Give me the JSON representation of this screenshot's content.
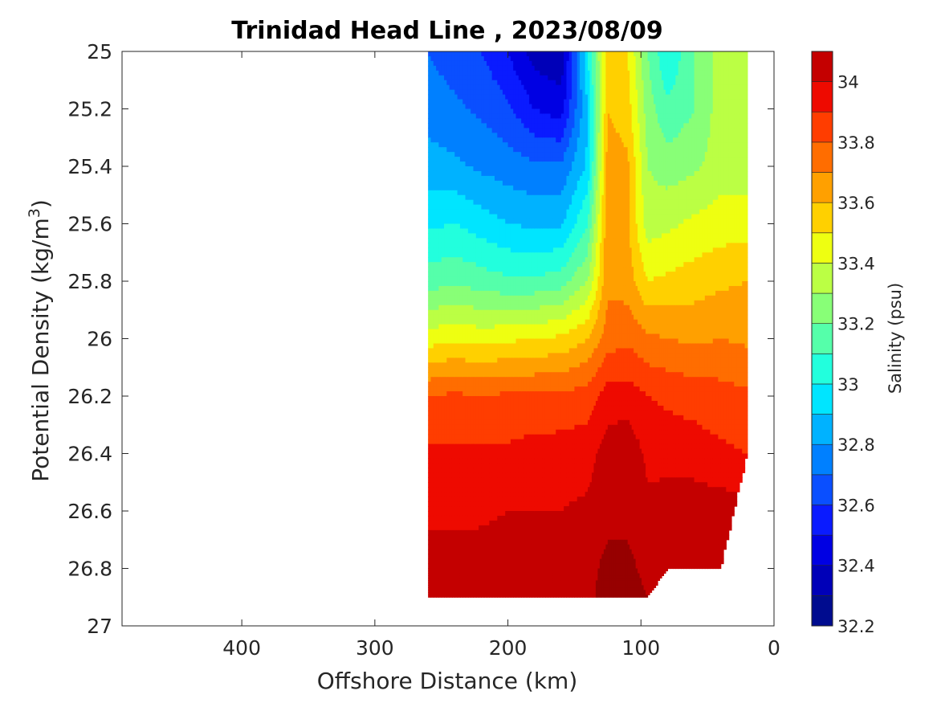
{
  "chart_data": {
    "type": "heatmap",
    "subtype": "filled-contour",
    "title": "Trinidad Head Line , 2023/08/09",
    "xlabel": "Offshore Distance (km)",
    "ylabel_main": "Potential Density (kg/m",
    "ylabel_sup": "3",
    "ylabel_tail": ")",
    "xlim": [
      490,
      0
    ],
    "x_reversed": true,
    "ylim": [
      25,
      27
    ],
    "y_reversed": true,
    "xticks": [
      400,
      300,
      200,
      100,
      0
    ],
    "yticks": [
      25,
      25.2,
      25.4,
      25.6,
      25.8,
      26,
      26.2,
      26.4,
      26.6,
      26.8,
      27
    ],
    "colorbar": {
      "label": "Salinity (psu)",
      "range": [
        32.2,
        34.1
      ],
      "levels": [
        32.2,
        32.3,
        32.4,
        32.5,
        32.6,
        32.7,
        32.8,
        32.9,
        33.0,
        33.1,
        33.2,
        33.3,
        33.4,
        33.5,
        33.6,
        33.7,
        33.8,
        33.9,
        34.0,
        34.1
      ],
      "ticks": [
        32.2,
        32.4,
        32.6,
        32.8,
        33,
        33.2,
        33.4,
        33.6,
        33.8,
        34
      ],
      "colors": [
        "#000c8f",
        "#0000b8",
        "#0000e3",
        "#0a1bff",
        "#0a4fff",
        "#0080ff",
        "#00b2ff",
        "#00e5ff",
        "#22ffdd",
        "#55ffaa",
        "#88ff77",
        "#bbff44",
        "#eeff11",
        "#ffd000",
        "#ffa000",
        "#ff6d00",
        "#ff3d00",
        "#ee0a00",
        "#c40000",
        "#970000"
      ]
    },
    "grid": false,
    "x": [
      260,
      240,
      220,
      200,
      180,
      160,
      140,
      125,
      110,
      95,
      80,
      60,
      40,
      20
    ],
    "y": [
      25.0,
      25.2,
      25.4,
      25.6,
      25.8,
      26.0,
      26.2,
      26.4,
      26.6,
      26.8,
      26.9
    ],
    "bottom": [
      26.9,
      26.9,
      26.9,
      26.9,
      26.9,
      26.9,
      26.9,
      26.9,
      26.9,
      26.9,
      26.8,
      26.8,
      26.8,
      26.4
    ],
    "z": [
      [
        32.7,
        32.65,
        32.6,
        32.5,
        32.35,
        32.32,
        33.0,
        33.55,
        33.5,
        33.2,
        33.0,
        33.2,
        33.35,
        33.35
      ],
      [
        32.75,
        32.72,
        32.68,
        32.62,
        32.5,
        32.45,
        32.9,
        33.6,
        33.55,
        33.25,
        33.12,
        33.2,
        33.35,
        33.35
      ],
      [
        32.85,
        32.82,
        32.78,
        32.75,
        32.72,
        32.72,
        32.92,
        33.65,
        33.62,
        33.3,
        33.25,
        33.28,
        33.35,
        33.35
      ],
      [
        32.98,
        33.0,
        32.95,
        32.9,
        32.88,
        32.88,
        33.1,
        33.68,
        33.62,
        33.35,
        33.38,
        33.42,
        33.45,
        33.45
      ],
      [
        33.15,
        33.18,
        33.15,
        33.12,
        33.12,
        33.15,
        33.3,
        33.68,
        33.65,
        33.5,
        33.52,
        33.55,
        33.58,
        33.6
      ],
      [
        33.45,
        33.48,
        33.46,
        33.48,
        33.5,
        33.52,
        33.6,
        33.75,
        33.78,
        33.72,
        33.7,
        33.68,
        33.7,
        33.68
      ],
      [
        33.8,
        33.82,
        33.8,
        33.82,
        33.82,
        33.82,
        33.85,
        33.95,
        33.95,
        33.9,
        33.88,
        33.86,
        33.84,
        33.82
      ],
      [
        33.92,
        33.92,
        33.92,
        33.92,
        33.94,
        33.95,
        33.96,
        34.05,
        34.07,
        33.98,
        33.96,
        33.95,
        33.92,
        33.9
      ],
      [
        33.98,
        33.98,
        33.98,
        34.0,
        34.0,
        34.0,
        34.02,
        34.08,
        34.08,
        34.02,
        34.05,
        34.06,
        34.05,
        34.05
      ],
      [
        34.04,
        34.04,
        34.05,
        34.07,
        34.07,
        34.07,
        34.08,
        34.12,
        34.12,
        34.08,
        34.07,
        34.08,
        34.08,
        34.08
      ],
      [
        34.05,
        34.06,
        34.07,
        34.08,
        34.08,
        34.08,
        34.08,
        34.13,
        34.13,
        34.1,
        34.08,
        34.08,
        34.08,
        34.08
      ]
    ]
  }
}
